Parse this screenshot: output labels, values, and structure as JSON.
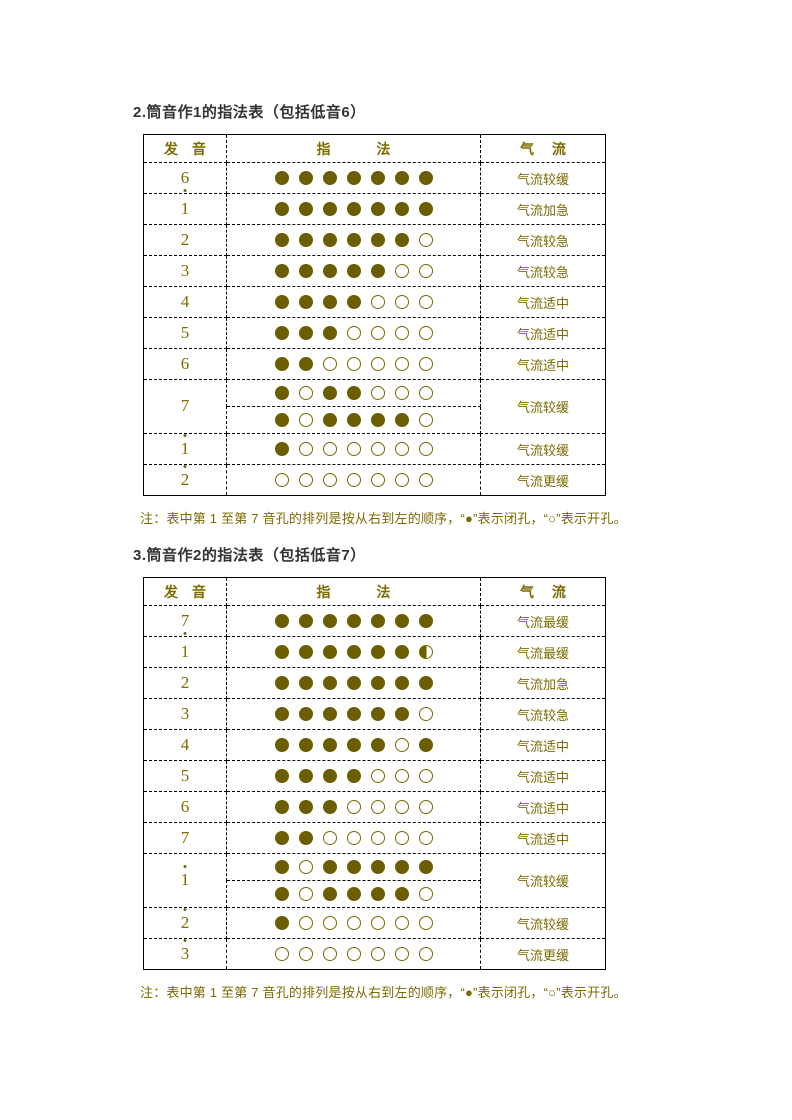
{
  "colors": {
    "accent_text": "#7B6B00",
    "hole_fill": "#6B5E00",
    "title_text": "#333333",
    "table_border": "#000000",
    "background": "#ffffff"
  },
  "hole_icons": {
    "closed": "filled-circle",
    "open": "outlined-circle",
    "half": "half-filled-circle"
  },
  "sections": [
    {
      "title": "2.筒音作1的指法表（包括低音6）",
      "table": {
        "headers": {
          "note": "发　音",
          "fingering": "指　　　 法",
          "airflow": "气　 流"
        },
        "rows": [
          {
            "note": "6",
            "octave": "low",
            "fingerings": [
              "1111111"
            ],
            "airflow": "气流较缓"
          },
          {
            "note": "1",
            "octave": "mid",
            "fingerings": [
              "1111111"
            ],
            "airflow": "气流加急"
          },
          {
            "note": "2",
            "octave": "mid",
            "fingerings": [
              "1111110"
            ],
            "airflow": "气流较急"
          },
          {
            "note": "3",
            "octave": "mid",
            "fingerings": [
              "1111100"
            ],
            "airflow": "气流较急"
          },
          {
            "note": "4",
            "octave": "mid",
            "fingerings": [
              "1111000"
            ],
            "airflow": "气流适中"
          },
          {
            "note": "5",
            "octave": "mid",
            "fingerings": [
              "1110000"
            ],
            "airflow": "气流适中"
          },
          {
            "note": "6",
            "octave": "mid",
            "fingerings": [
              "1100000"
            ],
            "airflow": "气流适中"
          },
          {
            "note": "7",
            "octave": "mid",
            "fingerings": [
              "1011000",
              "1011110"
            ],
            "airflow": "气流较缓"
          },
          {
            "note": "1",
            "octave": "high",
            "fingerings": [
              "1000000"
            ],
            "airflow": "气流较缓"
          },
          {
            "note": "2",
            "octave": "high",
            "fingerings": [
              "0000000"
            ],
            "airflow": "气流更缓"
          }
        ]
      },
      "footnote": "注：表中第 1 至第 7 音孔的排列是按从右到左的顺序，“●”表示闭孔，“○”表示开孔。"
    },
    {
      "title": "3.筒音作2的指法表（包括低音7）",
      "table": {
        "headers": {
          "note": "发　音",
          "fingering": "指　　　 法",
          "airflow": "气　 流"
        },
        "rows": [
          {
            "note": "7",
            "octave": "low",
            "fingerings": [
              "1111111"
            ],
            "airflow": "气流最缓"
          },
          {
            "note": "1",
            "octave": "mid",
            "fingerings": [
              "111111h"
            ],
            "airflow": "气流最缓"
          },
          {
            "note": "2",
            "octave": "mid",
            "fingerings": [
              "1111111"
            ],
            "airflow": "气流加急"
          },
          {
            "note": "3",
            "octave": "mid",
            "fingerings": [
              "1111110"
            ],
            "airflow": "气流较急"
          },
          {
            "note": "4",
            "octave": "mid",
            "fingerings": [
              "1111101"
            ],
            "airflow": "气流适中"
          },
          {
            "note": "5",
            "octave": "mid",
            "fingerings": [
              "1111000"
            ],
            "airflow": "气流适中"
          },
          {
            "note": "6",
            "octave": "mid",
            "fingerings": [
              "1110000"
            ],
            "airflow": "气流适中"
          },
          {
            "note": "7",
            "octave": "mid",
            "fingerings": [
              "1100000"
            ],
            "airflow": "气流适中"
          },
          {
            "note": "1",
            "octave": "high",
            "fingerings": [
              "1011111",
              "1011110"
            ],
            "airflow": "气流较缓"
          },
          {
            "note": "2",
            "octave": "high",
            "fingerings": [
              "1000000"
            ],
            "airflow": "气流较缓"
          },
          {
            "note": "3",
            "octave": "high",
            "fingerings": [
              "0000000"
            ],
            "airflow": "气流更缓"
          }
        ]
      },
      "footnote": "注：表中第 1 至第 7 音孔的排列是按从右到左的顺序，“●”表示闭孔，“○”表示开孔。"
    }
  ]
}
